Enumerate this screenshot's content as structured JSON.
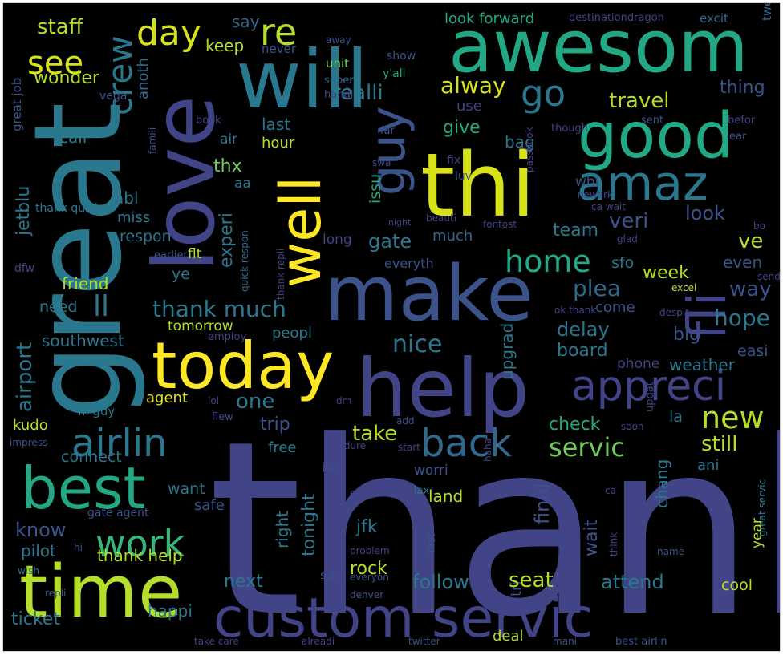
{
  "word_cloud": {
    "palette": [
      "#440154",
      "#3b528b",
      "#21918c",
      "#5ec962",
      "#fde725"
    ],
    "words": [
      {
        "text": "thank",
        "color": "#414487"
      },
      {
        "text": "great",
        "color": "#2a788e"
      },
      {
        "text": "love",
        "color": "#414487"
      },
      {
        "text": "will",
        "color": "#2a788e"
      },
      {
        "text": "awesom",
        "color": "#22a884"
      },
      {
        "text": "thi",
        "color": "#d8e219"
      },
      {
        "text": "make",
        "color": "#3b528b"
      },
      {
        "text": "help",
        "color": "#414487"
      },
      {
        "text": "custom servic",
        "color": "#414487"
      },
      {
        "text": "time",
        "color": "#b5de2b"
      },
      {
        "text": "today",
        "color": "#fde725"
      },
      {
        "text": "good",
        "color": "#22a884"
      },
      {
        "text": "amaz",
        "color": "#2a788e"
      },
      {
        "text": "best",
        "color": "#22a884"
      },
      {
        "text": "go",
        "color": "#2a788e"
      },
      {
        "text": "well",
        "color": "#fde725"
      },
      {
        "text": "guy",
        "color": "#3b528b"
      },
      {
        "text": "fli",
        "color": "#414487"
      },
      {
        "text": "appreci",
        "color": "#414487"
      },
      {
        "text": "back",
        "color": "#31688e"
      },
      {
        "text": "airlin",
        "color": "#2a788e"
      },
      {
        "text": "work",
        "color": "#35b779"
      },
      {
        "text": "new",
        "color": "#b5de2b"
      },
      {
        "text": "see",
        "color": "#d8e219"
      },
      {
        "text": "day",
        "color": "#d8e219"
      },
      {
        "text": "re",
        "color": "#b5de2b"
      },
      {
        "text": "crew",
        "color": "#2a788e"
      },
      {
        "text": "servic",
        "color": "#6ece58"
      },
      {
        "text": "home",
        "color": "#22a884"
      },
      {
        "text": "staff",
        "color": "#b5de2b"
      },
      {
        "text": "realli",
        "color": "#2a788e"
      },
      {
        "text": "look forward",
        "color": "#22a884"
      },
      {
        "text": "say",
        "color": "#31688e"
      },
      {
        "text": "destinationdragon",
        "color": "#414487"
      },
      {
        "text": "excit",
        "color": "#31688e"
      },
      {
        "text": "tweet",
        "color": "#31688e"
      },
      {
        "text": "keep",
        "color": "#b5de2b"
      },
      {
        "text": "never",
        "color": "#3b528b"
      },
      {
        "text": "away",
        "color": "#3b528b"
      },
      {
        "text": "show",
        "color": "#3b528b"
      },
      {
        "text": "unit",
        "color": "#6ece58"
      },
      {
        "text": "y'all",
        "color": "#22a884"
      },
      {
        "text": "wonder",
        "color": "#b5de2b"
      },
      {
        "text": "anoth",
        "color": "#31688e"
      },
      {
        "text": "super",
        "color": "#31688e"
      },
      {
        "text": "alway",
        "color": "#d8e219"
      },
      {
        "text": "thing",
        "color": "#3b528b"
      },
      {
        "text": "handl",
        "color": "#414487"
      },
      {
        "text": "vega",
        "color": "#3b528b"
      },
      {
        "text": "travel",
        "color": "#b5de2b"
      },
      {
        "text": "befor",
        "color": "#414487"
      },
      {
        "text": "great job",
        "color": "#3b528b"
      },
      {
        "text": "use",
        "color": "#414487"
      },
      {
        "text": "book",
        "color": "#414487"
      },
      {
        "text": "sent",
        "color": "#3b528b"
      },
      {
        "text": "ear",
        "color": "#3b528b"
      },
      {
        "text": "call",
        "color": "#2a788e"
      },
      {
        "text": "last",
        "color": "#2a788e"
      },
      {
        "text": "give",
        "color": "#22a884"
      },
      {
        "text": "though",
        "color": "#414487"
      },
      {
        "text": "air",
        "color": "#2a788e"
      },
      {
        "text": "far",
        "color": "#3b528b"
      },
      {
        "text": "famili",
        "color": "#3b528b"
      },
      {
        "text": "bag",
        "color": "#2a788e"
      },
      {
        "text": "hour",
        "color": "#b5de2b"
      },
      {
        "text": "swa",
        "color": "#414487"
      },
      {
        "text": "fix",
        "color": "#414487"
      },
      {
        "text": "passbook",
        "color": "#414487"
      },
      {
        "text": "jetblu",
        "color": "#2a788e"
      },
      {
        "text": "thx",
        "color": "#6ece58"
      },
      {
        "text": "aa",
        "color": "#2a788e"
      },
      {
        "text": "luv",
        "color": "#3b528b"
      },
      {
        "text": "whi",
        "color": "#3b528b"
      },
      {
        "text": "abl",
        "color": "#2a788e"
      },
      {
        "text": "issu",
        "color": "#22a884"
      },
      {
        "text": "ca wait",
        "color": "#414487"
      },
      {
        "text": "newark",
        "color": "#414487"
      },
      {
        "text": "thank quick",
        "color": "#2a788e"
      },
      {
        "text": "miss",
        "color": "#2a788e"
      },
      {
        "text": "experi",
        "color": "#2a788e"
      },
      {
        "text": "veri",
        "color": "#3b528b"
      },
      {
        "text": "look",
        "color": "#3b528b"
      },
      {
        "text": "respon",
        "color": "#2a788e"
      },
      {
        "text": "quick respon",
        "color": "#31688e"
      },
      {
        "text": "night",
        "color": "#414487"
      },
      {
        "text": "beauti",
        "color": "#414487"
      },
      {
        "text": "team",
        "color": "#2a788e"
      },
      {
        "text": "fontost",
        "color": "#414487"
      },
      {
        "text": "bo",
        "color": "#414487"
      },
      {
        "text": "gate",
        "color": "#2a788e"
      },
      {
        "text": "much",
        "color": "#31688e"
      },
      {
        "text": "long",
        "color": "#414487"
      },
      {
        "text": "glad",
        "color": "#414487"
      },
      {
        "text": "ve",
        "color": "#b5de2b"
      },
      {
        "text": "earlier",
        "color": "#3b528b"
      },
      {
        "text": "flt",
        "color": "#b5de2b"
      },
      {
        "text": "thank repli",
        "color": "#414487"
      },
      {
        "text": "everyth",
        "color": "#3b528b"
      },
      {
        "text": "sfo",
        "color": "#2a788e"
      },
      {
        "text": "even",
        "color": "#3b528b"
      },
      {
        "text": "dfw",
        "color": "#414487"
      },
      {
        "text": "ye",
        "color": "#2a788e"
      },
      {
        "text": "week",
        "color": "#b5de2b"
      },
      {
        "text": "send",
        "color": "#414487"
      },
      {
        "text": "friend",
        "color": "#b5de2b"
      },
      {
        "text": "plea",
        "color": "#31688e"
      },
      {
        "text": "way",
        "color": "#3b528b"
      },
      {
        "text": "excel",
        "color": "#b5de2b"
      },
      {
        "text": "need",
        "color": "#2a788e"
      },
      {
        "text": "ll",
        "color": "#2a788e"
      },
      {
        "text": "thank much",
        "color": "#2a788e"
      },
      {
        "text": "ok thank",
        "color": "#414487"
      },
      {
        "text": "come",
        "color": "#3b528b"
      },
      {
        "text": "despit",
        "color": "#414487"
      },
      {
        "text": "airport",
        "color": "#2a788e"
      },
      {
        "text": "tomorrow",
        "color": "#b5de2b"
      },
      {
        "text": "hope",
        "color": "#2a788e"
      },
      {
        "text": "employ",
        "color": "#414487"
      },
      {
        "text": "delay",
        "color": "#2a788e"
      },
      {
        "text": "peopl",
        "color": "#2a788e"
      },
      {
        "text": "big",
        "color": "#3b528b"
      },
      {
        "text": "southwest",
        "color": "#2a788e"
      },
      {
        "text": "nice",
        "color": "#2a788e"
      },
      {
        "text": "upgrad",
        "color": "#2a788e"
      },
      {
        "text": "board",
        "color": "#2a788e"
      },
      {
        "text": "easi",
        "color": "#3b528b"
      },
      {
        "text": "phone",
        "color": "#414487"
      },
      {
        "text": "weather",
        "color": "#2a788e"
      },
      {
        "text": "agent",
        "color": "#d8e219"
      },
      {
        "text": "one",
        "color": "#2a788e"
      },
      {
        "text": "lol",
        "color": "#414487"
      },
      {
        "text": "updat",
        "color": "#414487"
      },
      {
        "text": "la",
        "color": "#2a788e"
      },
      {
        "text": "fli guy",
        "color": "#2a788e"
      },
      {
        "text": "flew",
        "color": "#414487"
      },
      {
        "text": "kudo",
        "color": "#b5de2b"
      },
      {
        "text": "dm",
        "color": "#414487"
      },
      {
        "text": "trip",
        "color": "#3b528b"
      },
      {
        "text": "take",
        "color": "#b5de2b"
      },
      {
        "text": "check",
        "color": "#22a884"
      },
      {
        "text": "impress",
        "color": "#3b528b"
      },
      {
        "text": "free",
        "color": "#2a788e"
      },
      {
        "text": "add",
        "color": "#3b528b"
      },
      {
        "text": "haha",
        "color": "#414487"
      },
      {
        "text": "soon",
        "color": "#414487"
      },
      {
        "text": "still",
        "color": "#b5de2b"
      },
      {
        "text": "connect",
        "color": "#2a788e"
      },
      {
        "text": "ua dure",
        "color": "#414487"
      },
      {
        "text": "start",
        "color": "#414487"
      },
      {
        "text": "worri",
        "color": "#3b528b"
      },
      {
        "text": "ani",
        "color": "#2a788e"
      },
      {
        "text": "chang",
        "color": "#2a788e"
      },
      {
        "text": "job",
        "color": "#3b528b"
      },
      {
        "text": "lax",
        "color": "#2a788e"
      },
      {
        "text": "want",
        "color": "#2a788e"
      },
      {
        "text": "enjoy",
        "color": "#414487"
      },
      {
        "text": "land",
        "color": "#b5de2b"
      },
      {
        "text": "final",
        "color": "#3b528b"
      },
      {
        "text": "ca",
        "color": "#414487"
      },
      {
        "text": "great servic",
        "color": "#2a788e"
      },
      {
        "text": "safe",
        "color": "#3b528b"
      },
      {
        "text": "gate agent",
        "color": "#3b528b"
      },
      {
        "text": "know",
        "color": "#3b528b"
      },
      {
        "text": "right",
        "color": "#2a788e"
      },
      {
        "text": "tonight",
        "color": "#2a788e"
      },
      {
        "text": "jfk",
        "color": "#2a788e"
      },
      {
        "text": "first",
        "color": "#3b528b"
      },
      {
        "text": "wait",
        "color": "#3b528b"
      },
      {
        "text": "think",
        "color": "#414487"
      },
      {
        "text": "year",
        "color": "#b5de2b"
      },
      {
        "text": "pilot",
        "color": "#2a788e"
      },
      {
        "text": "hi",
        "color": "#3b528b"
      },
      {
        "text": "thank help",
        "color": "#b5de2b"
      },
      {
        "text": "problem",
        "color": "#414487"
      },
      {
        "text": "name",
        "color": "#3b528b"
      },
      {
        "text": "rock",
        "color": "#b5de2b"
      },
      {
        "text": "wish",
        "color": "#2a788e"
      },
      {
        "text": "sure",
        "color": "#3b528b"
      },
      {
        "text": "tri",
        "color": "#3b528b"
      },
      {
        "text": "everyon",
        "color": "#3b528b"
      },
      {
        "text": "next",
        "color": "#2a788e"
      },
      {
        "text": "follow",
        "color": "#2a788e"
      },
      {
        "text": "seat",
        "color": "#b5de2b"
      },
      {
        "text": "attend",
        "color": "#2a788e"
      },
      {
        "text": "cool",
        "color": "#b5de2b"
      },
      {
        "text": "repli",
        "color": "#3b528b"
      },
      {
        "text": "denver",
        "color": "#3b528b"
      },
      {
        "text": "ticket",
        "color": "#2a788e"
      },
      {
        "text": "happi",
        "color": "#2a788e"
      },
      {
        "text": "take care",
        "color": "#414487"
      },
      {
        "text": "alreadi",
        "color": "#414487"
      },
      {
        "text": "twitter",
        "color": "#3b528b"
      },
      {
        "text": "deal",
        "color": "#b5de2b"
      },
      {
        "text": "mani",
        "color": "#3b528b"
      },
      {
        "text": "best airlin",
        "color": "#3b528b"
      }
    ]
  }
}
